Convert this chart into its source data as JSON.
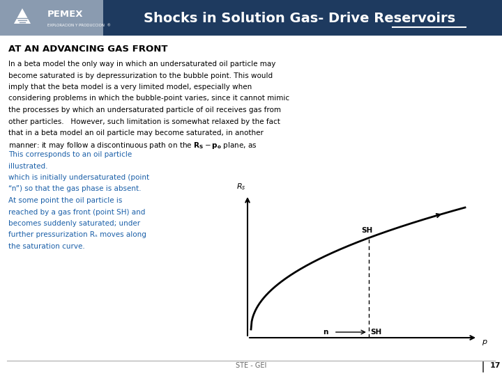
{
  "title": "Shocks in Solution Gas- Drive Reservoirs",
  "header_bg_color": "#1e3a5f",
  "header_text_color": "#ffffff",
  "pemex_bg_color": "#8a9bb0",
  "slide_bg": "#ffffff",
  "subtitle": "AT AN ADVANCING GAS FRONT",
  "subtitle_color": "#000000",
  "body_black_lines": [
    "In a beta model the only way in which an undersaturated oil particle may",
    "become saturated is by depressurization to the bubble point. This would",
    "imply that the beta model is a very limited model, especially when",
    "considering problems in which the bubble-point varies, since it cannot mimic",
    "the processes by which an undersaturated particle of oil receives gas from",
    "other particles.   However, such limitation is somewhat relaxed by the fact",
    "that in a beta model an oil particle may become saturated, in another",
    "manner: it may follow a discontinuous path on the $\\mathbf{R_S} - \\mathbf{p_o}$ plane, as"
  ],
  "body_blue_lines": [
    "This corresponds to an oil particle",
    "illustrated.",
    "which is initially undersaturated (point",
    "“n”) so that the gas phase is absent.",
    "At some point the oil particle is",
    "reached by a gas front (point SH) and",
    "becomes suddenly saturated; under",
    "further pressurization Rₛ moves along",
    "the saturation curve."
  ],
  "body_blue_color": "#1a5fa8",
  "footer_text": "STE - GEI",
  "footer_page": "17"
}
